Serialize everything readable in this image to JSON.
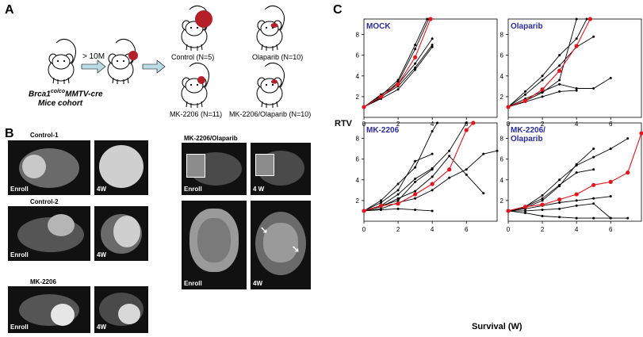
{
  "panels": {
    "a": "A",
    "b": "B",
    "c": "C"
  },
  "panelA": {
    "cohort_line1_name": "Brca1",
    "cohort_line1_sup": "co/co",
    "cohort_line1_rest": "MMTV-cre",
    "cohort_line2": "Mice cohort",
    "arrow_label": "> 10M",
    "groups": {
      "control": "Control (N=5)",
      "olaparib": "Olaparib (N=10)",
      "mk": "MK-2206 (N=11)",
      "combo": "MK-2206/Olaparib (N=10)"
    }
  },
  "panelB": {
    "control1": "Control-1",
    "control2": "Control-2",
    "mk": "MK-2206",
    "combo": "MK-2206/Olaparib",
    "enroll": "Enroll",
    "w4": "4W",
    "w4_space": "4 W"
  },
  "chart_data": [
    {
      "type": "line",
      "title": "MOCK",
      "xlabel": "",
      "ylabel": "",
      "xlim": [
        0,
        7.8
      ],
      "ylim": [
        0,
        9.5
      ],
      "xticks": [
        0,
        2,
        4,
        6
      ],
      "yticks": [
        2,
        4,
        6,
        8
      ],
      "series": [
        {
          "color": "#000000",
          "points": [
            [
              0,
              1
            ],
            [
              1,
              2.2
            ],
            [
              2,
              3.2
            ],
            [
              3,
              5.2
            ],
            [
              4,
              7.6
            ]
          ]
        },
        {
          "color": "#000000",
          "points": [
            [
              0,
              1
            ],
            [
              1,
              2
            ],
            [
              2,
              3
            ],
            [
              3,
              4.8
            ],
            [
              4,
              7
            ]
          ]
        },
        {
          "color": "#000000",
          "points": [
            [
              0,
              1
            ],
            [
              1,
              1.8
            ],
            [
              2,
              2.7
            ],
            [
              3,
              4.6
            ],
            [
              4,
              6.8
            ]
          ]
        },
        {
          "color": "#000000",
          "points": [
            [
              0,
              1
            ],
            [
              1,
              1.9
            ],
            [
              2,
              3.4
            ],
            [
              3,
              6.6
            ],
            [
              3.8,
              9.5
            ]
          ]
        },
        {
          "color": "#000000",
          "points": [
            [
              0,
              1
            ],
            [
              1,
              2.1
            ],
            [
              2,
              3.6
            ],
            [
              3,
              7
            ],
            [
              3.7,
              9.5
            ]
          ]
        },
        {
          "color": "#e8141c",
          "points": [
            [
              0,
              1
            ],
            [
              1,
              2
            ],
            [
              2,
              3.2
            ],
            [
              3,
              5.8
            ],
            [
              3.9,
              9.5
            ]
          ]
        }
      ]
    },
    {
      "type": "line",
      "title": "Olaparib",
      "xlabel": "",
      "ylabel": "",
      "xlim": [
        0,
        7.8
      ],
      "ylim": [
        0,
        9.5
      ],
      "xticks": [
        0,
        2,
        4,
        6
      ],
      "yticks": [
        2,
        4,
        6,
        8
      ],
      "series": [
        {
          "color": "#000000",
          "points": [
            [
              0,
              1
            ],
            [
              1,
              2.5
            ],
            [
              2,
              4
            ],
            [
              3,
              6
            ],
            [
              4,
              7.6
            ],
            [
              4.6,
              9.5
            ]
          ]
        },
        {
          "color": "#000000",
          "points": [
            [
              0,
              1
            ],
            [
              1,
              2.2
            ],
            [
              2,
              3.6
            ],
            [
              3,
              5
            ],
            [
              4,
              6.8
            ],
            [
              5,
              7.8
            ]
          ]
        },
        {
          "color": "#000000",
          "points": [
            [
              0,
              1
            ],
            [
              1,
              1.8
            ],
            [
              2,
              2.5
            ],
            [
              3,
              3.2
            ],
            [
              4,
              2.8
            ],
            [
              5,
              2.8
            ],
            [
              6,
              3.8
            ]
          ]
        },
        {
          "color": "#000000",
          "points": [
            [
              0,
              1
            ],
            [
              1,
              1.5
            ],
            [
              2,
              2
            ],
            [
              3,
              2.5
            ],
            [
              4,
              2.6
            ]
          ]
        },
        {
          "color": "#000000",
          "points": [
            [
              0,
              1
            ],
            [
              1,
              1.6
            ],
            [
              2,
              2.4
            ],
            [
              3,
              3.6
            ],
            [
              4,
              9.5
            ]
          ]
        },
        {
          "color": "#e8141c",
          "points": [
            [
              0,
              1
            ],
            [
              1,
              1.6
            ],
            [
              2,
              2.7
            ],
            [
              3,
              4.5
            ],
            [
              4,
              6.9
            ],
            [
              4.8,
              9.5
            ]
          ]
        }
      ]
    },
    {
      "type": "line",
      "title": "MK-2206",
      "xlabel": "",
      "ylabel": "",
      "xlim": [
        0,
        7.8
      ],
      "ylim": [
        0,
        9.5
      ],
      "xticks": [
        0,
        2,
        4,
        6
      ],
      "yticks": [
        2,
        4,
        6,
        8
      ],
      "series": [
        {
          "color": "#000000",
          "points": [
            [
              0,
              1
            ],
            [
              1,
              1.4
            ],
            [
              2,
              2.2
            ],
            [
              3,
              2.9
            ],
            [
              4,
              4.3
            ],
            [
              5,
              6.3
            ],
            [
              6,
              4.5
            ],
            [
              7,
              2.7
            ]
          ]
        },
        {
          "color": "#000000",
          "points": [
            [
              0,
              1
            ],
            [
              1,
              1.2
            ],
            [
              2,
              1.8
            ],
            [
              3,
              2.2
            ],
            [
              4,
              3
            ],
            [
              5,
              4.2
            ],
            [
              6,
              5
            ],
            [
              7,
              6.5
            ],
            [
              7.8,
              6.8
            ]
          ]
        },
        {
          "color": "#000000",
          "points": [
            [
              0,
              1
            ],
            [
              1,
              1.1
            ],
            [
              2,
              1.2
            ],
            [
              3,
              1.1
            ],
            [
              4,
              1
            ]
          ]
        },
        {
          "color": "#000000",
          "points": [
            [
              0,
              1
            ],
            [
              1,
              1.5
            ],
            [
              2,
              2.6
            ],
            [
              3,
              4.1
            ],
            [
              4,
              5.1
            ],
            [
              5,
              6.8
            ],
            [
              6,
              9.5
            ]
          ]
        },
        {
          "color": "#000000",
          "points": [
            [
              0,
              1
            ],
            [
              1,
              2
            ],
            [
              2,
              3.6
            ],
            [
              3,
              5.2
            ],
            [
              4,
              8.7
            ],
            [
              4.3,
              9.5
            ]
          ]
        },
        {
          "color": "#000000",
          "points": [
            [
              0,
              1
            ],
            [
              1,
              1.5
            ],
            [
              2,
              2
            ],
            [
              3,
              3.8
            ],
            [
              4,
              5
            ]
          ]
        },
        {
          "color": "#000000",
          "points": [
            [
              0,
              1
            ],
            [
              1,
              1.8
            ],
            [
              2,
              3
            ],
            [
              3,
              5.8
            ],
            [
              4,
              6.5
            ]
          ]
        },
        {
          "color": "#e8141c",
          "points": [
            [
              0,
              1
            ],
            [
              1,
              1.5
            ],
            [
              2,
              1.7
            ],
            [
              3,
              2.6
            ],
            [
              4,
              3.6
            ],
            [
              5,
              5
            ],
            [
              6,
              8.8
            ],
            [
              6.4,
              9.5
            ]
          ]
        }
      ]
    },
    {
      "type": "line",
      "title": "MK-2206/\nOlaparib",
      "xlabel": "",
      "ylabel": "",
      "xlim": [
        0,
        7.8
      ],
      "ylim": [
        0,
        9.5
      ],
      "xticks": [
        0,
        2,
        4,
        6
      ],
      "yticks": [
        2,
        4,
        6,
        8
      ],
      "series": [
        {
          "color": "#000000",
          "points": [
            [
              0,
              1
            ],
            [
              1,
              1.3
            ],
            [
              2,
              2
            ],
            [
              3,
              3.4
            ],
            [
              4,
              5.5
            ],
            [
              5,
              7
            ]
          ]
        },
        {
          "color": "#000000",
          "points": [
            [
              0,
              1
            ],
            [
              1,
              1.4
            ],
            [
              2,
              2.5
            ],
            [
              3,
              4
            ],
            [
              4,
              5.4
            ],
            [
              5,
              6.2
            ],
            [
              6,
              7
            ],
            [
              7,
              8
            ]
          ]
        },
        {
          "color": "#000000",
          "points": [
            [
              0,
              1
            ],
            [
              1,
              1.2
            ],
            [
              2,
              1.5
            ],
            [
              3,
              1.8
            ],
            [
              4,
              2
            ],
            [
              5,
              2.2
            ],
            [
              6,
              2.4
            ]
          ]
        },
        {
          "color": "#000000",
          "points": [
            [
              0,
              1
            ],
            [
              1,
              1
            ],
            [
              2,
              1.1
            ],
            [
              3,
              1.2
            ],
            [
              4,
              1.5
            ],
            [
              5,
              1.7
            ],
            [
              6,
              0.3
            ]
          ]
        },
        {
          "color": "#000000",
          "points": [
            [
              0,
              1
            ],
            [
              1,
              0.8
            ],
            [
              2,
              0.5
            ],
            [
              3,
              0.4
            ],
            [
              4,
              0.3
            ],
            [
              5,
              0.3
            ],
            [
              6,
              0.3
            ],
            [
              7,
              0.3
            ]
          ]
        },
        {
          "color": "#000000",
          "points": [
            [
              0,
              1
            ],
            [
              1,
              1.4
            ],
            [
              2,
              2.2
            ],
            [
              3,
              3.5
            ],
            [
              4,
              4.7
            ],
            [
              5,
              5
            ]
          ]
        },
        {
          "color": "#e8141c",
          "points": [
            [
              0,
              1
            ],
            [
              1,
              1.4
            ],
            [
              2,
              1.6
            ],
            [
              3,
              2.1
            ],
            [
              4,
              2.6
            ],
            [
              5,
              3.5
            ],
            [
              6,
              3.8
            ],
            [
              7,
              4.7
            ],
            [
              7.8,
              8.5
            ]
          ]
        }
      ]
    }
  ],
  "axes": {
    "ylabel": "RTV",
    "xlabel": "Survival (W)"
  },
  "colors": {
    "tumor": "#b3202a",
    "title_blue": "#2a2aa3",
    "red_series": "#e8141c",
    "arrow_fill": "#b9dce6"
  }
}
